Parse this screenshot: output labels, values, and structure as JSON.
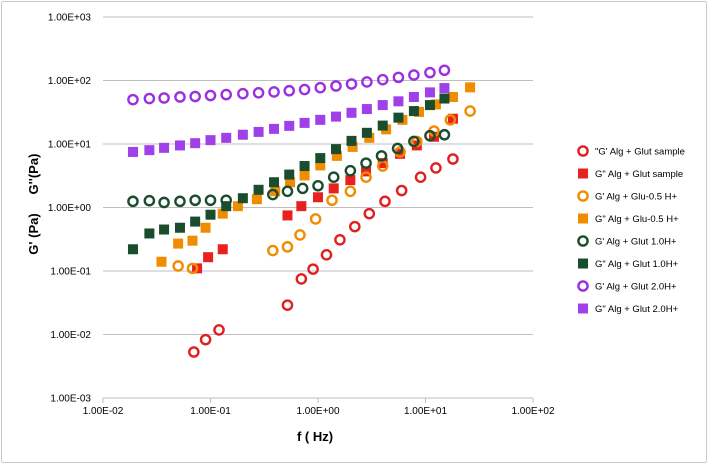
{
  "chart_data": {
    "type": "scatter",
    "title": "",
    "xlabel": "f ( Hz)",
    "ylabel_parts": [
      "G' (Pa)",
      "G''(Pa)"
    ],
    "x_scale": "log",
    "y_scale": "log",
    "xlim": [
      0.01,
      100
    ],
    "ylim": [
      0.001,
      1000
    ],
    "x_ticks": [
      "1.00E-02",
      "1.00E-01",
      "1.00E+00",
      "1.00E+01",
      "1.00E+02"
    ],
    "y_ticks": [
      "1.00E-03",
      "1.00E-02",
      "1.00E-01",
      "1.00E+00",
      "1.00E+01",
      "1.00E+02",
      "1.00E+03"
    ],
    "grid": "horizontal",
    "legend_position": "right",
    "series": [
      {
        "name": "\"G'  Alg + Glut sample",
        "color": "#e02020",
        "marker": "circle-open",
        "points": [
          [
            0.07,
            0.0053
          ],
          [
            0.09,
            0.0083
          ],
          [
            0.12,
            0.0118
          ],
          [
            0.52,
            0.029
          ],
          [
            0.7,
            0.075
          ],
          [
            0.9,
            0.107
          ],
          [
            1.2,
            0.18
          ],
          [
            1.6,
            0.31
          ],
          [
            2.2,
            0.5
          ],
          [
            3.0,
            0.8
          ],
          [
            4.2,
            1.25
          ],
          [
            6.0,
            1.85
          ],
          [
            9.0,
            3.0
          ],
          [
            12.5,
            4.2
          ],
          [
            18.0,
            5.8
          ]
        ]
      },
      {
        "name": "G\" Alg + Glut sample",
        "color": "#e82020",
        "marker": "square-filled",
        "points": [
          [
            0.075,
            0.11
          ],
          [
            0.095,
            0.165
          ],
          [
            0.13,
            0.22
          ],
          [
            0.52,
            0.75
          ],
          [
            0.7,
            1.05
          ],
          [
            1.0,
            1.45
          ],
          [
            1.4,
            2.0
          ],
          [
            2.0,
            2.7
          ],
          [
            2.8,
            3.7
          ],
          [
            4.0,
            5.0
          ],
          [
            5.8,
            7.0
          ],
          [
            8.3,
            9.5
          ],
          [
            12.0,
            13.0
          ],
          [
            18.0,
            25.0
          ]
        ]
      },
      {
        "name": "G' Alg + Glu-0.5 H+",
        "color": "#f08c00",
        "marker": "circle-open",
        "points": [
          [
            0.05,
            0.12
          ],
          [
            0.068,
            0.11
          ],
          [
            0.38,
            0.21
          ],
          [
            0.52,
            0.24
          ],
          [
            0.68,
            0.37
          ],
          [
            0.95,
            0.66
          ],
          [
            1.35,
            1.3
          ],
          [
            2.0,
            1.8
          ],
          [
            2.8,
            3.0
          ],
          [
            4.0,
            4.5
          ],
          [
            5.8,
            7.5
          ],
          [
            8.3,
            11.0
          ],
          [
            12.0,
            16.0
          ],
          [
            17.0,
            24.0
          ],
          [
            26.0,
            33.0
          ]
        ]
      },
      {
        "name": "G\" Alg + Glu-0.5 H+",
        "color": "#f08c00",
        "marker": "square-filled",
        "points": [
          [
            0.035,
            0.14
          ],
          [
            0.05,
            0.27
          ],
          [
            0.068,
            0.3
          ],
          [
            0.09,
            0.48
          ],
          [
            0.13,
            0.8
          ],
          [
            0.18,
            1.05
          ],
          [
            0.27,
            1.35
          ],
          [
            0.4,
            1.8
          ],
          [
            0.55,
            2.5
          ],
          [
            0.75,
            3.2
          ],
          [
            1.05,
            4.6
          ],
          [
            1.5,
            6.5
          ],
          [
            2.1,
            9.0
          ],
          [
            3.0,
            12.5
          ],
          [
            4.3,
            17.0
          ],
          [
            6.1,
            24.0
          ],
          [
            8.7,
            32.0
          ],
          [
            12.5,
            42.0
          ],
          [
            18.0,
            55.0
          ],
          [
            26.0,
            78.0
          ]
        ]
      },
      {
        "name": "G' Alg + Glut 1.0H+",
        "color": "#1a4d2e",
        "marker": "circle-open",
        "points": [
          [
            0.019,
            1.25
          ],
          [
            0.027,
            1.28
          ],
          [
            0.037,
            1.2
          ],
          [
            0.052,
            1.25
          ],
          [
            0.072,
            1.3
          ],
          [
            0.1,
            1.3
          ],
          [
            0.14,
            1.3
          ],
          [
            0.38,
            1.6
          ],
          [
            0.52,
            1.8
          ],
          [
            0.72,
            2.0
          ],
          [
            1.0,
            2.2
          ],
          [
            1.4,
            3.0
          ],
          [
            2.0,
            3.8
          ],
          [
            2.8,
            5.0
          ],
          [
            3.9,
            6.5
          ],
          [
            5.5,
            8.5
          ],
          [
            7.8,
            11.0
          ],
          [
            11.0,
            13.5
          ],
          [
            15.0,
            14.0
          ]
        ]
      },
      {
        "name": "G\" Alg + Glut 1.0H+",
        "color": "#1a4d2e",
        "marker": "square-filled",
        "points": [
          [
            0.019,
            0.22
          ],
          [
            0.027,
            0.39
          ],
          [
            0.037,
            0.45
          ],
          [
            0.052,
            0.48
          ],
          [
            0.072,
            0.6
          ],
          [
            0.1,
            0.77
          ],
          [
            0.14,
            1.05
          ],
          [
            0.2,
            1.4
          ],
          [
            0.28,
            1.9
          ],
          [
            0.39,
            2.5
          ],
          [
            0.54,
            3.3
          ],
          [
            0.75,
            4.5
          ],
          [
            1.05,
            6.0
          ],
          [
            1.47,
            8.3
          ],
          [
            2.05,
            11.2
          ],
          [
            2.85,
            15.0
          ],
          [
            4.0,
            19.5
          ],
          [
            5.6,
            26.0
          ],
          [
            7.8,
            33.0
          ],
          [
            11.0,
            41.0
          ],
          [
            15.0,
            52.0
          ]
        ]
      },
      {
        "name": "G' Alg + Glut 2.0H+",
        "color": "#9b30e0",
        "marker": "circle-open",
        "points": [
          [
            0.019,
            50.0
          ],
          [
            0.027,
            52.0
          ],
          [
            0.037,
            53.0
          ],
          [
            0.052,
            55.0
          ],
          [
            0.072,
            56.0
          ],
          [
            0.1,
            58.0
          ],
          [
            0.14,
            60.0
          ],
          [
            0.2,
            62.0
          ],
          [
            0.28,
            64.0
          ],
          [
            0.39,
            66.0
          ],
          [
            0.54,
            69.0
          ],
          [
            0.75,
            72.0
          ],
          [
            1.05,
            77.0
          ],
          [
            1.47,
            82.0
          ],
          [
            2.05,
            88.0
          ],
          [
            2.85,
            95.0
          ],
          [
            4.0,
            103.0
          ],
          [
            5.6,
            112.0
          ],
          [
            7.8,
            122.0
          ],
          [
            11.0,
            133.0
          ],
          [
            15.0,
            145.0
          ]
        ]
      },
      {
        "name": "G\" Alg + Glut 2.0H+",
        "color": "#a040e8",
        "marker": "square-filled",
        "points": [
          [
            0.019,
            7.5
          ],
          [
            0.027,
            8.0
          ],
          [
            0.037,
            8.7
          ],
          [
            0.052,
            9.5
          ],
          [
            0.072,
            10.3
          ],
          [
            0.1,
            11.5
          ],
          [
            0.14,
            12.5
          ],
          [
            0.2,
            14.0
          ],
          [
            0.28,
            15.5
          ],
          [
            0.39,
            17.3
          ],
          [
            0.54,
            19.3
          ],
          [
            0.75,
            21.5
          ],
          [
            1.05,
            24.0
          ],
          [
            1.47,
            27.0
          ],
          [
            2.05,
            31.0
          ],
          [
            2.85,
            35.5
          ],
          [
            4.0,
            41.0
          ],
          [
            5.6,
            47.0
          ],
          [
            7.8,
            55.0
          ],
          [
            11.0,
            65.0
          ],
          [
            15.0,
            76.0
          ]
        ]
      }
    ]
  }
}
